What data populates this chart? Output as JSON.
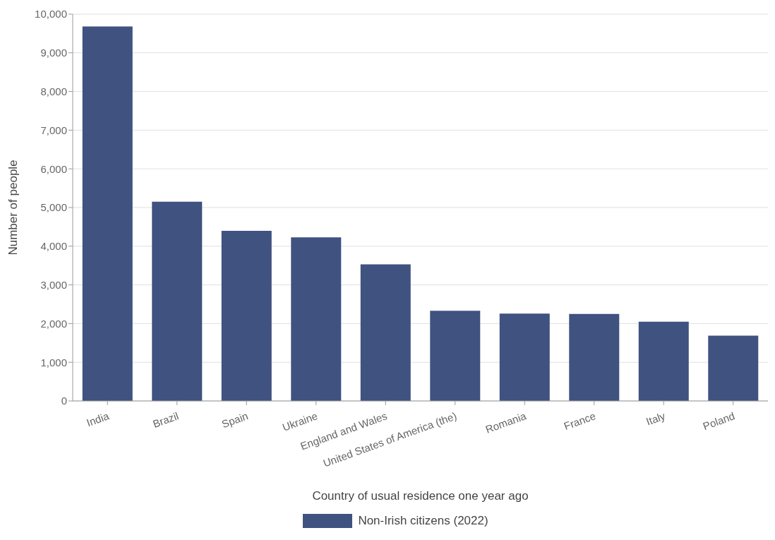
{
  "chart_data": {
    "type": "bar",
    "xlabel": "Country of usual residence one year ago",
    "ylabel": "Number of people",
    "categories": [
      "India",
      "Brazil",
      "Spain",
      "Ukraine",
      "England and Wales",
      "United States of America (the)",
      "Romania",
      "France",
      "Italy",
      "Poland"
    ],
    "series": [
      {
        "name": "Non-Irish citizens (2022)",
        "color": "#3f5280",
        "values": [
          9680,
          5150,
          4400,
          4230,
          3530,
          2330,
          2260,
          2250,
          2050,
          1690
        ]
      }
    ],
    "ylim": [
      0,
      10000
    ],
    "yticks": [
      0,
      {
        "value": 1000,
        "label": "1,000"
      },
      {
        "value": 2000,
        "label": "2,000"
      },
      {
        "value": 3000,
        "label": "3,000"
      },
      {
        "value": 4000,
        "label": "4,000"
      },
      {
        "value": 5000,
        "label": "5,000"
      },
      {
        "value": 6000,
        "label": "6,000"
      },
      {
        "value": 7000,
        "label": "7,000"
      },
      {
        "value": 8000,
        "label": "8,000"
      },
      {
        "value": 9000,
        "label": "9,000"
      },
      {
        "value": 10000,
        "label": "10,000"
      }
    ],
    "grid": "y",
    "legend": "bottom"
  }
}
